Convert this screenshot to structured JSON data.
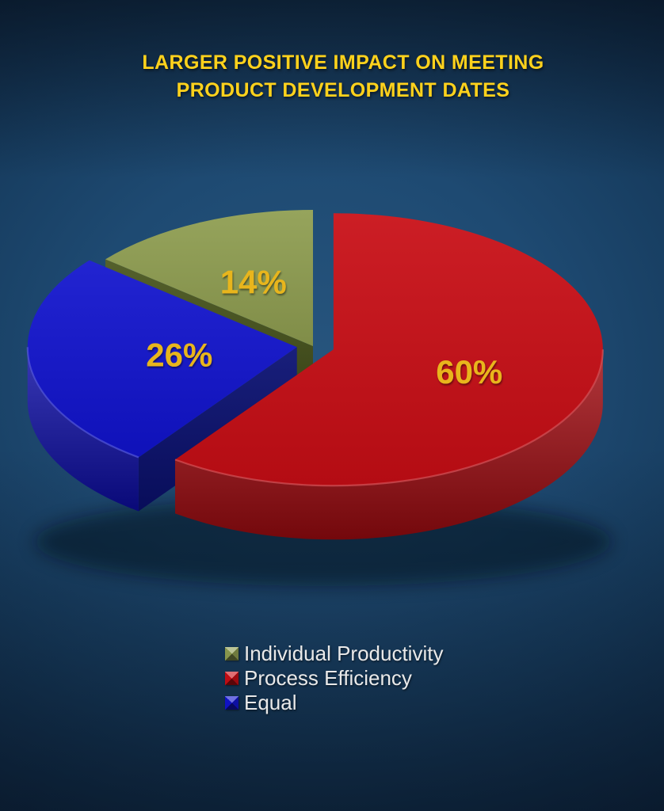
{
  "chart_data": {
    "type": "pie",
    "style": "3d-exploded",
    "title": "LARGER POSITIVE IMPACT ON MEETING PRODUCT DEVELOPMENT DATES",
    "title_color": "#ffd21c",
    "background": {
      "center": "#1e4a72",
      "edge": "#0a1a2e"
    },
    "start_angle_deg": 0,
    "direction": "clockwise",
    "slices": [
      {
        "label": "Process Efficiency",
        "value": 60,
        "pct_label": "60%",
        "color": "#c80d15",
        "side_color": "#a10b11",
        "cut_color": "#8f0a0f"
      },
      {
        "label": "Equal",
        "value": 26,
        "pct_label": "26%",
        "color": "#1113ce",
        "side_color": "#0d0da6",
        "cut_color": "#0a1173"
      },
      {
        "label": "Individual Productivity",
        "value": 14,
        "pct_label": "14%",
        "color": "#8e9d50",
        "side_color": "#55632a",
        "cut_color": "#4a571e"
      }
    ],
    "data_label_color": "#e8b51f",
    "legend": {
      "position": "bottom-center",
      "text_color": "#e9e9e9",
      "items": [
        {
          "label": "Individual Productivity",
          "color": "#8e9d50"
        },
        {
          "label": "Process Efficiency",
          "color": "#c80d15"
        },
        {
          "label": "Equal",
          "color": "#1113ce"
        }
      ]
    }
  }
}
